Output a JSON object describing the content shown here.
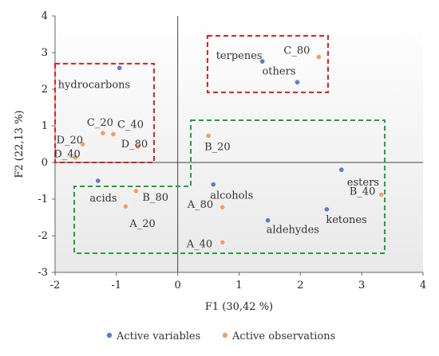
{
  "chart_data": {
    "type": "scatter",
    "xlabel": "F1 (30,42 %)",
    "ylabel": "F2 (22,13 %)",
    "xlim": [
      -2,
      4
    ],
    "ylim": [
      -3,
      4
    ],
    "xticks": [
      -2,
      -1,
      0,
      1,
      2,
      3,
      4
    ],
    "yticks": [
      -3,
      -2,
      -1,
      0,
      1,
      2,
      3,
      4
    ],
    "xtick_labels": [
      "-2",
      "-1",
      "0",
      "1",
      "2",
      "3",
      "4"
    ],
    "ytick_labels": [
      "-3",
      "-2",
      "-1",
      "0",
      "1",
      "2",
      "3",
      "4"
    ],
    "grid": false,
    "legend_position": "bottom",
    "series": [
      {
        "name": "Active variables",
        "color": "#5b7fc7",
        "points": [
          {
            "label": "hydrocarbons",
            "x": -0.95,
            "y": 2.58
          },
          {
            "label": "terpenes",
            "x": 1.38,
            "y": 2.76
          },
          {
            "label": "others",
            "x": 1.95,
            "y": 2.19
          },
          {
            "label": "",
            "x": -1.3,
            "y": -0.5
          },
          {
            "label": "alcohols",
            "x": 0.58,
            "y": -0.6
          },
          {
            "label": "esters",
            "x": 2.67,
            "y": -0.2
          },
          {
            "label": "ketones",
            "x": 2.43,
            "y": -1.28
          },
          {
            "label": "aldehydes",
            "x": 1.47,
            "y": -1.58
          }
        ]
      },
      {
        "name": "Active observations",
        "color": "#f0a064",
        "points": [
          {
            "label": "C_80",
            "x": 2.3,
            "y": 2.88
          },
          {
            "label": "C_20",
            "x": -1.22,
            "y": 0.8
          },
          {
            "label": "C_40",
            "x": -1.05,
            "y": 0.77
          },
          {
            "label": "D_80",
            "x": -0.65,
            "y": 0.43
          },
          {
            "label": "D_20",
            "x": -1.55,
            "y": 0.5
          },
          {
            "label": "D_40",
            "x": -1.67,
            "y": 0.14
          },
          {
            "label": "B_20",
            "x": 0.5,
            "y": 0.73
          },
          {
            "label": "acids",
            "x": -0.68,
            "y": -0.78
          },
          {
            "label": "A_20",
            "x": -0.85,
            "y": -1.2
          },
          {
            "label": "B_80",
            "x": -0.68,
            "y": -0.78
          },
          {
            "label": "A_80",
            "x": 0.73,
            "y": -1.22
          },
          {
            "label": "A_40",
            "x": 0.73,
            "y": -2.18
          },
          {
            "label": "B_40",
            "x": 3.32,
            "y": -0.88
          }
        ]
      }
    ],
    "annotation_boxes": [
      {
        "color": "#e02020",
        "style": "dashed"
      },
      {
        "color": "#e02020",
        "style": "dashed"
      },
      {
        "color": "#20a040",
        "style": "dashed"
      }
    ]
  }
}
